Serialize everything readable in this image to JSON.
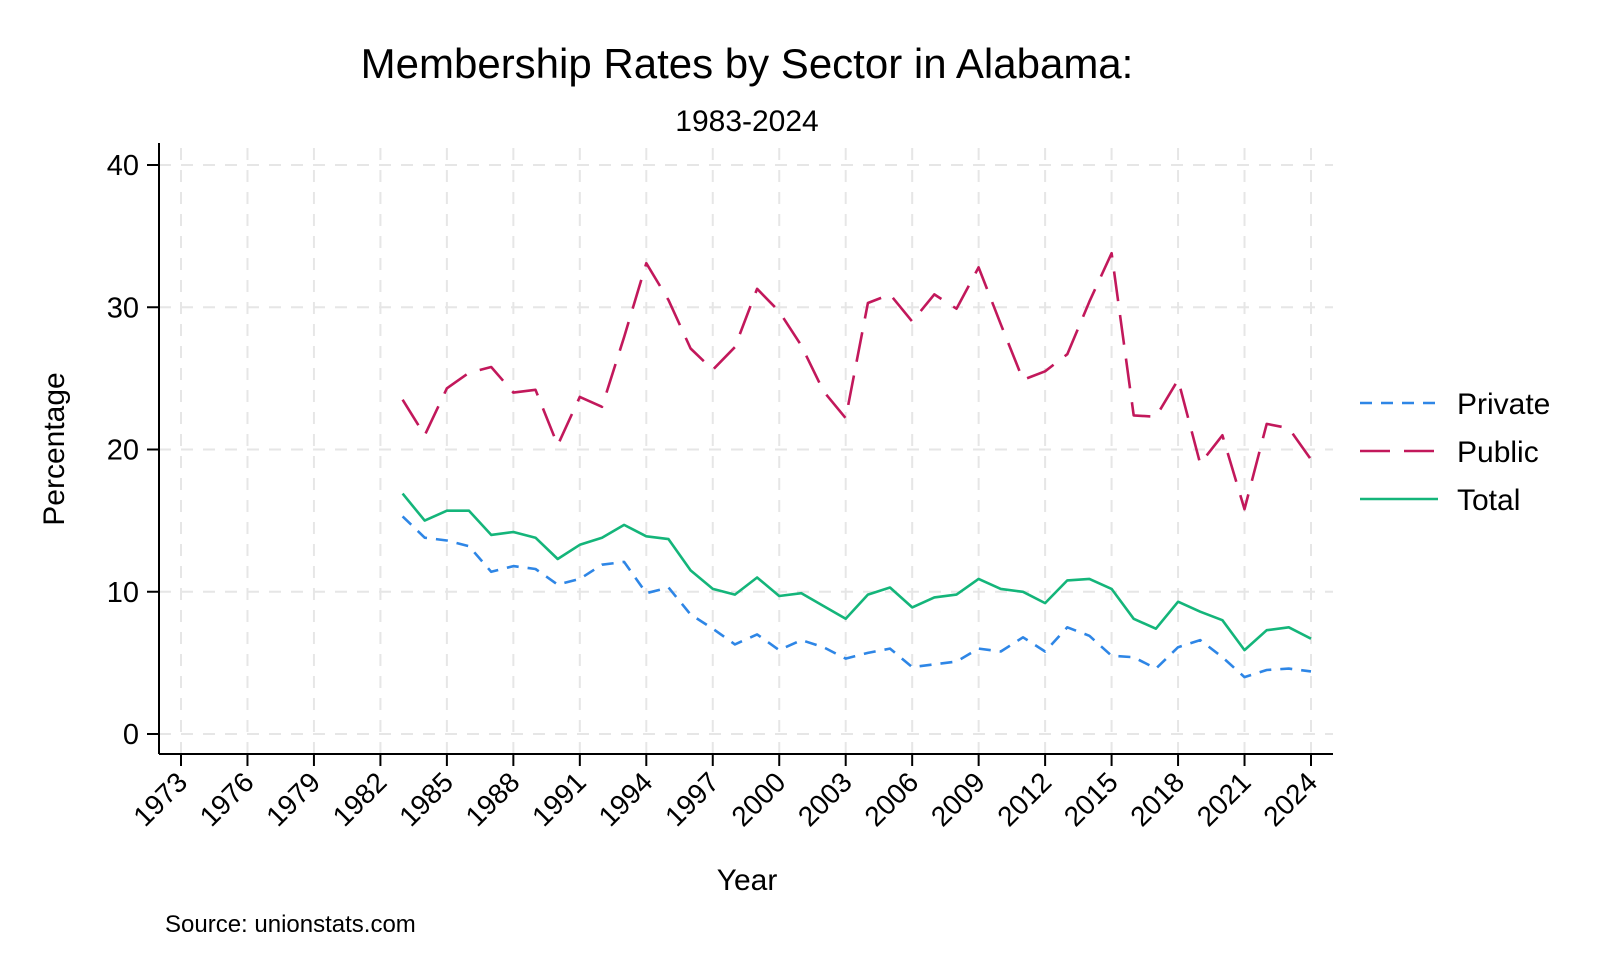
{
  "chart_data": {
    "type": "line",
    "title": "Membership Rates by Sector in Alabama:",
    "subtitle": "1983-2024",
    "xlabel": "Year",
    "ylabel": "Percentage",
    "source": "Source: unionstats.com",
    "xlim": [
      1973,
      2024
    ],
    "ylim": [
      0,
      40
    ],
    "x_ticks": [
      1973,
      1976,
      1979,
      1982,
      1985,
      1988,
      1991,
      1994,
      1997,
      2000,
      2003,
      2006,
      2009,
      2012,
      2015,
      2018,
      2021,
      2024
    ],
    "y_ticks": [
      0,
      10,
      20,
      30,
      40
    ],
    "grid": true,
    "legend_position": "right",
    "x": [
      1983,
      1984,
      1985,
      1986,
      1987,
      1988,
      1989,
      1990,
      1991,
      1992,
      1993,
      1994,
      1995,
      1996,
      1997,
      1998,
      1999,
      2000,
      2001,
      2002,
      2003,
      2004,
      2005,
      2006,
      2007,
      2008,
      2009,
      2010,
      2011,
      2012,
      2013,
      2014,
      2015,
      2016,
      2017,
      2018,
      2019,
      2020,
      2021,
      2022,
      2023,
      2024
    ],
    "series": [
      {
        "name": "Private",
        "color": "#2e86e6",
        "dash": "short",
        "values": [
          15.3,
          13.8,
          13.6,
          13.2,
          11.4,
          11.8,
          11.6,
          10.5,
          10.9,
          11.9,
          12.1,
          9.9,
          10.3,
          8.4,
          7.4,
          6.3,
          7.0,
          5.9,
          6.6,
          6.1,
          5.3,
          5.7,
          6.0,
          4.7,
          4.9,
          5.1,
          6.0,
          5.8,
          6.8,
          5.8,
          7.5,
          6.9,
          5.5,
          5.4,
          4.6,
          6.1,
          6.6,
          5.4,
          4.0,
          4.5,
          4.6,
          4.4
        ]
      },
      {
        "name": "Public",
        "color": "#c2185b",
        "dash": "long",
        "values": [
          23.5,
          21.0,
          24.3,
          25.4,
          25.8,
          24.0,
          24.2,
          20.3,
          23.7,
          23.0,
          27.9,
          33.1,
          30.5,
          27.1,
          25.6,
          27.2,
          31.3,
          29.7,
          27.3,
          24.1,
          22.2,
          30.3,
          30.9,
          29.0,
          30.9,
          29.9,
          32.8,
          28.8,
          24.9,
          25.5,
          26.7,
          30.4,
          33.8,
          22.4,
          22.3,
          24.9,
          19.0,
          21.0,
          15.8,
          21.8,
          21.5,
          19.3
        ]
      },
      {
        "name": "Total",
        "color": "#14b57a",
        "dash": "solid",
        "values": [
          16.9,
          15.0,
          15.7,
          15.7,
          14.0,
          14.2,
          13.8,
          12.3,
          13.3,
          13.8,
          14.7,
          13.9,
          13.7,
          11.5,
          10.2,
          9.8,
          11.0,
          9.7,
          9.9,
          9.0,
          8.1,
          9.8,
          10.3,
          8.9,
          9.6,
          9.8,
          10.9,
          10.2,
          10.0,
          9.2,
          10.8,
          10.9,
          10.2,
          8.1,
          7.4,
          9.3,
          8.6,
          8.0,
          5.9,
          7.3,
          7.5,
          6.7
        ]
      }
    ]
  }
}
